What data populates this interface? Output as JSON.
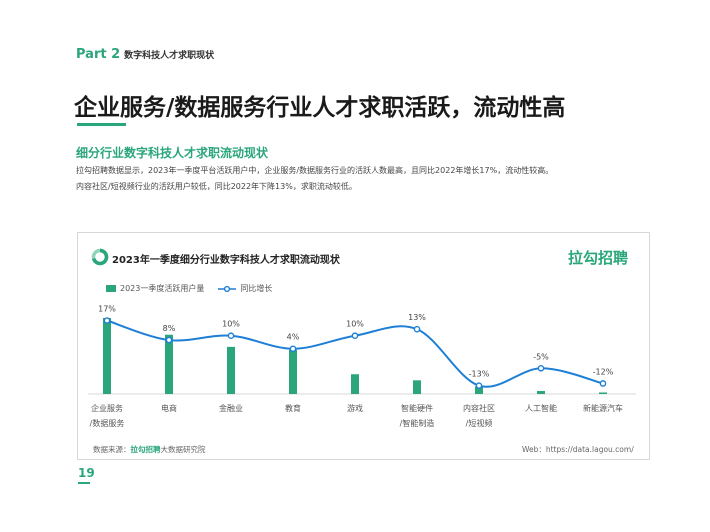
{
  "header": {
    "part_label": "Part 2",
    "part_title": "数字科技人才求职现状",
    "headline": "企业服务/数据服务行业人才求职活跃，流动性高",
    "section_title": "细分行业数字科技人才求职流动现状",
    "description_lines": [
      "拉勾招聘数据显示，2023年一季度平台活跃用户中，企业服务/数据服务行业的活跃人数最高，且同比2022年增长17%，流动性较高。",
      "内容社区/短视频行业的活跃用户较低，同比2022年下降13%，求职流动较低。"
    ]
  },
  "card": {
    "title": "2023年一季度细分行业数字科技人才求职流动现状",
    "brand": "拉勾招聘",
    "source_prefix": "数据来源：",
    "source_brand": "拉勾招聘",
    "source_suffix": "大数据研究院",
    "web": "Web：https://data.lagou.com/"
  },
  "page": {
    "number": "19"
  },
  "colors": {
    "accent": "#2aa67a",
    "line": "#1e7fd6"
  },
  "chart_data": {
    "type": "bar+line",
    "title": "2023年一季度细分行业数字科技人才求职流动现状",
    "categories": [
      [
        "企业服务",
        "/数据服务"
      ],
      [
        "电商"
      ],
      [
        "金融业"
      ],
      [
        "教育"
      ],
      [
        "游戏"
      ],
      [
        "智能硬件",
        "/智能制造"
      ],
      [
        "内容社区",
        "/短视频"
      ],
      [
        "人工智能"
      ],
      [
        "新能源汽车"
      ]
    ],
    "series": [
      {
        "name": "2023一季度活跃用户量",
        "type": "bar",
        "values": [
          100,
          78,
          62,
          58,
          26,
          18,
          10,
          4,
          2
        ]
      },
      {
        "name": "同比增长",
        "type": "line",
        "values": [
          17,
          8,
          10,
          4,
          10,
          13,
          -13,
          -5,
          -12
        ],
        "labels": [
          "17%",
          "8%",
          "10%",
          "4%",
          "10%",
          "13%",
          "-13%",
          "-5%",
          "-12%"
        ]
      }
    ],
    "legend_position": "top-left",
    "grid": false
  }
}
